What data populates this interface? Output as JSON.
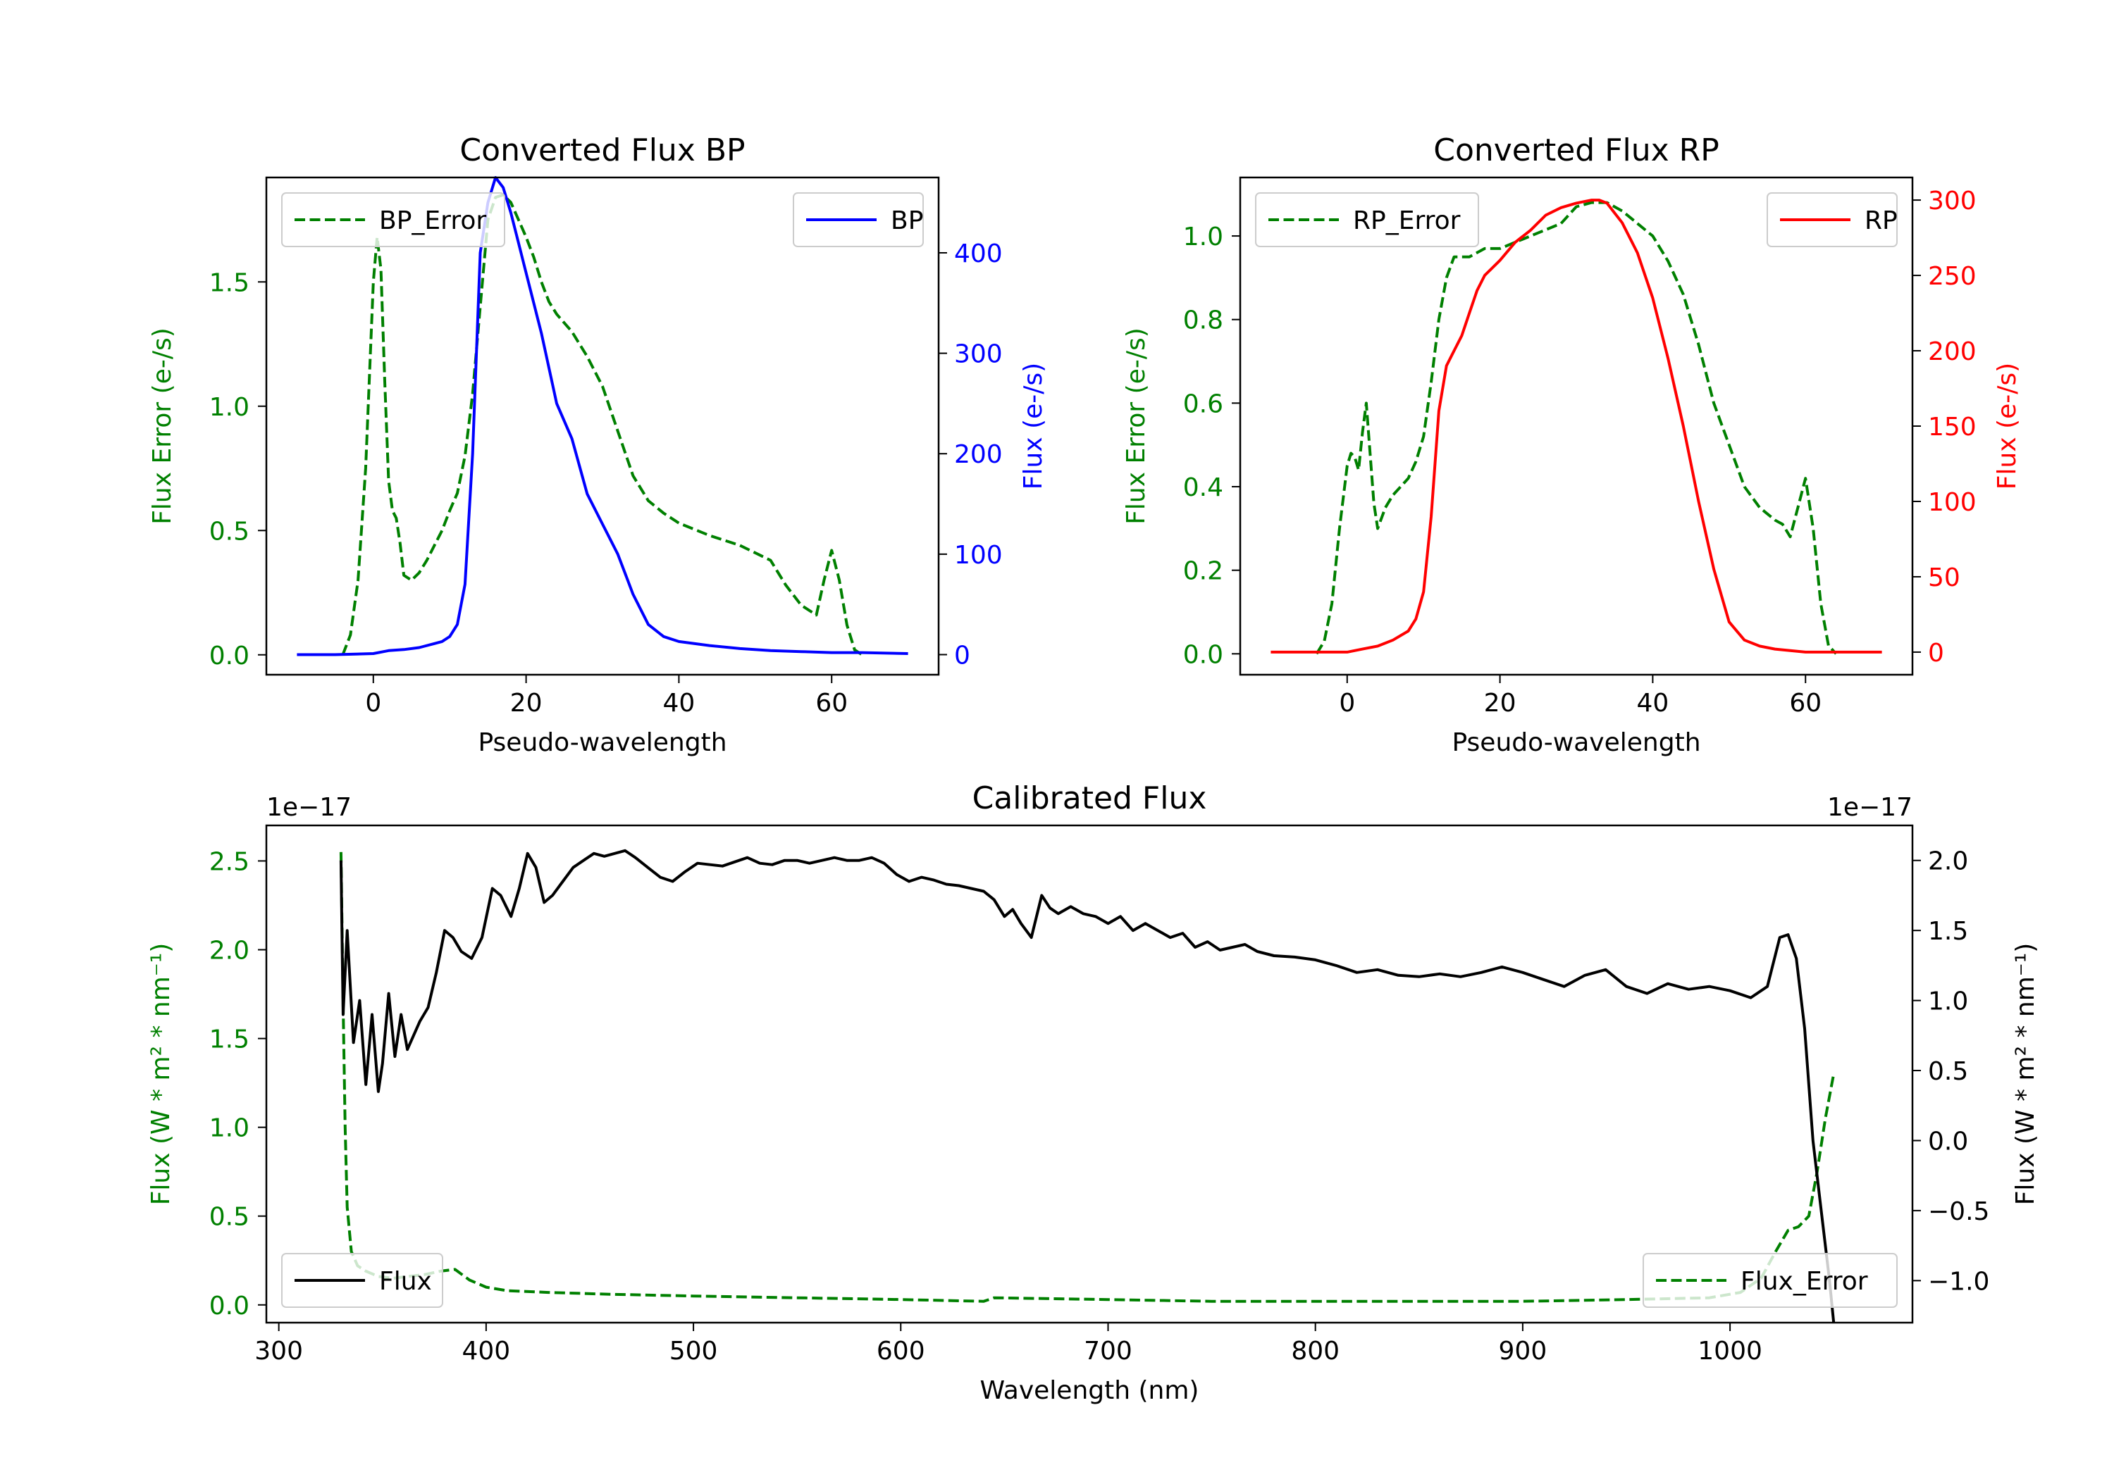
{
  "colors": {
    "bp": "#0000ff",
    "rp": "#ff0000",
    "error": "#008000",
    "flux": "#000000",
    "axis": "#000000"
  },
  "chart_data": [
    {
      "id": "bp",
      "type": "line",
      "title": "Converted Flux BP",
      "xlabel": "Pseudo-wavelength",
      "ylabel_left": "Flux Error (e-/s)",
      "ylabel_right": "Flux (e-/s)",
      "xlim": [
        -14,
        74
      ],
      "ylim_left": [
        -0.08,
        1.92
      ],
      "ylim_right": [
        -20,
        475
      ],
      "xticks": [
        0,
        20,
        40,
        60
      ],
      "yticks_left": [
        0.0,
        0.5,
        1.0,
        1.5
      ],
      "yticks_right": [
        0,
        100,
        200,
        300,
        400
      ],
      "legend_left": "BP_Error",
      "legend_right": "BP",
      "series": [
        {
          "name": "BP_Error",
          "axis": "left",
          "style": "dashed",
          "color": "#008000",
          "x": [
            -4,
            -3,
            -2,
            -1,
            0,
            0.5,
            1,
            1.5,
            2,
            2.5,
            3,
            3.5,
            4,
            5,
            6,
            7,
            8,
            9,
            10,
            11,
            12,
            13,
            14,
            15,
            16,
            17,
            18,
            19,
            20,
            21,
            22,
            23,
            24,
            26,
            28,
            30,
            32,
            34,
            36,
            38,
            40,
            44,
            48,
            52,
            54,
            56,
            58,
            59,
            60,
            61,
            62,
            63,
            64
          ],
          "values": [
            0.0,
            0.08,
            0.3,
            0.75,
            1.5,
            1.68,
            1.55,
            1.1,
            0.7,
            0.58,
            0.55,
            0.45,
            0.32,
            0.3,
            0.33,
            0.38,
            0.44,
            0.5,
            0.58,
            0.65,
            0.8,
            1.05,
            1.4,
            1.75,
            1.84,
            1.85,
            1.82,
            1.75,
            1.68,
            1.6,
            1.5,
            1.42,
            1.37,
            1.3,
            1.2,
            1.08,
            0.9,
            0.72,
            0.62,
            0.57,
            0.53,
            0.48,
            0.44,
            0.38,
            0.28,
            0.2,
            0.16,
            0.3,
            0.42,
            0.3,
            0.12,
            0.02,
            0.0
          ]
        },
        {
          "name": "BP",
          "axis": "right",
          "style": "solid",
          "color": "#0000ff",
          "x": [
            -10,
            -5,
            0,
            2,
            4,
            6,
            8,
            9,
            10,
            11,
            12,
            13,
            14,
            15,
            16,
            17,
            18,
            19,
            20,
            22,
            24,
            26,
            28,
            30,
            32,
            34,
            36,
            38,
            40,
            44,
            48,
            52,
            56,
            60,
            64,
            70
          ],
          "values": [
            0,
            0,
            1,
            4,
            5,
            7,
            11,
            13,
            18,
            30,
            70,
            200,
            400,
            450,
            475,
            465,
            440,
            410,
            380,
            320,
            250,
            215,
            160,
            130,
            100,
            60,
            30,
            18,
            13,
            9,
            6,
            4,
            3,
            2,
            2,
            1
          ]
        }
      ]
    },
    {
      "id": "rp",
      "type": "line",
      "title": "Converted Flux RP",
      "xlabel": "Pseudo-wavelength",
      "ylabel_left": "Flux Error (e-/s)",
      "ylabel_right": "Flux (e-/s)",
      "xlim": [
        -14,
        74
      ],
      "ylim_left": [
        -0.05,
        1.14
      ],
      "ylim_right": [
        -15,
        315
      ],
      "xticks": [
        0,
        20,
        40,
        60
      ],
      "yticks_left": [
        0.0,
        0.2,
        0.4,
        0.6,
        0.8,
        1.0
      ],
      "yticks_right": [
        0,
        50,
        100,
        150,
        200,
        250,
        300
      ],
      "legend_left": "RP_Error",
      "legend_right": "RP",
      "series": [
        {
          "name": "RP_Error",
          "axis": "left",
          "style": "dashed",
          "color": "#008000",
          "x": [
            -4,
            -3,
            -2,
            -1,
            0,
            0.5,
            1,
            1.5,
            2,
            2.5,
            3,
            3.5,
            4,
            5,
            6,
            7,
            8,
            9,
            10,
            11,
            12,
            13,
            14,
            15,
            16,
            18,
            20,
            24,
            28,
            30,
            32,
            34,
            36,
            38,
            40,
            42,
            44,
            46,
            48,
            50,
            52,
            54,
            56,
            57,
            58,
            59,
            60,
            61,
            62,
            63,
            64
          ],
          "values": [
            0.0,
            0.03,
            0.12,
            0.3,
            0.45,
            0.48,
            0.47,
            0.44,
            0.53,
            0.6,
            0.48,
            0.36,
            0.3,
            0.35,
            0.38,
            0.4,
            0.42,
            0.46,
            0.52,
            0.65,
            0.8,
            0.9,
            0.95,
            0.95,
            0.95,
            0.97,
            0.97,
            1.0,
            1.03,
            1.07,
            1.08,
            1.08,
            1.06,
            1.03,
            1.0,
            0.94,
            0.86,
            0.74,
            0.6,
            0.5,
            0.4,
            0.35,
            0.32,
            0.31,
            0.28,
            0.35,
            0.42,
            0.3,
            0.12,
            0.02,
            0.0
          ]
        },
        {
          "name": "RP",
          "axis": "right",
          "style": "solid",
          "color": "#ff0000",
          "x": [
            -10,
            -5,
            0,
            2,
            4,
            6,
            8,
            9,
            10,
            11,
            12,
            13,
            14,
            15,
            16,
            17,
            18,
            20,
            22,
            24,
            26,
            28,
            30,
            32,
            33,
            34,
            36,
            38,
            40,
            42,
            44,
            46,
            48,
            50,
            52,
            54,
            56,
            58,
            60,
            64,
            70
          ],
          "values": [
            0,
            0,
            0,
            2,
            4,
            8,
            14,
            22,
            40,
            90,
            160,
            190,
            200,
            210,
            225,
            240,
            250,
            260,
            272,
            280,
            290,
            295,
            298,
            300,
            300,
            298,
            285,
            265,
            235,
            195,
            150,
            100,
            55,
            20,
            8,
            4,
            2,
            1,
            0,
            0,
            0
          ]
        }
      ]
    },
    {
      "id": "cal",
      "type": "line",
      "title": "Calibrated Flux",
      "xlabel": "Wavelength (nm)",
      "ylabel_left": "Flux (W * m² * nm⁻¹)",
      "ylabel_right": "Flux (W * m² * nm⁻¹)",
      "offset_left": "1e−17",
      "offset_right": "1e−17",
      "xlim": [
        294,
        1088
      ],
      "ylim_left": [
        -0.1,
        2.7
      ],
      "ylim_right": [
        -1.3,
        2.25
      ],
      "xticks": [
        300,
        400,
        500,
        600,
        700,
        800,
        900,
        1000
      ],
      "yticks_left": [
        0.0,
        0.5,
        1.0,
        1.5,
        2.0,
        2.5
      ],
      "yticks_right": [
        -1.0,
        -0.5,
        0.0,
        0.5,
        1.0,
        1.5,
        2.0
      ],
      "legend_left": "Flux",
      "legend_right": "Flux_Error",
      "series": [
        {
          "name": "Flux_Error",
          "axis": "left",
          "style": "dashed",
          "color": "#008000",
          "x": [
            330,
            331,
            332,
            333,
            335,
            338,
            342,
            348,
            355,
            362,
            370,
            378,
            385,
            392,
            400,
            410,
            430,
            460,
            500,
            550,
            600,
            640,
            645,
            700,
            750,
            800,
            850,
            900,
            950,
            990,
            1005,
            1015,
            1022,
            1028,
            1033,
            1038,
            1042,
            1046,
            1050
          ],
          "values": [
            2.55,
            1.7,
            1.0,
            0.55,
            0.3,
            0.22,
            0.19,
            0.16,
            0.15,
            0.16,
            0.17,
            0.19,
            0.2,
            0.14,
            0.1,
            0.08,
            0.07,
            0.06,
            0.05,
            0.04,
            0.03,
            0.02,
            0.04,
            0.03,
            0.02,
            0.02,
            0.02,
            0.02,
            0.03,
            0.04,
            0.07,
            0.15,
            0.3,
            0.42,
            0.44,
            0.5,
            0.75,
            1.05,
            1.3
          ]
        },
        {
          "name": "Flux",
          "axis": "right",
          "style": "solid",
          "color": "#000000",
          "x": [
            330,
            331,
            333,
            336,
            339,
            342,
            345,
            348,
            350,
            353,
            356,
            359,
            362,
            365,
            368,
            372,
            376,
            380,
            384,
            388,
            393,
            398,
            403,
            407,
            412,
            416,
            420,
            424,
            428,
            432,
            437,
            442,
            447,
            452,
            457,
            462,
            467,
            472,
            478,
            484,
            490,
            496,
            502,
            508,
            514,
            520,
            526,
            532,
            538,
            544,
            550,
            556,
            562,
            568,
            574,
            580,
            586,
            592,
            598,
            604,
            610,
            616,
            622,
            628,
            634,
            640,
            645,
            650,
            654,
            658,
            663,
            668,
            672,
            676,
            682,
            688,
            694,
            700,
            706,
            712,
            718,
            724,
            730,
            736,
            742,
            748,
            754,
            760,
            766,
            772,
            780,
            790,
            800,
            810,
            820,
            830,
            840,
            850,
            860,
            870,
            880,
            890,
            900,
            910,
            920,
            930,
            940,
            950,
            960,
            970,
            980,
            990,
            1000,
            1010,
            1018,
            1024,
            1028,
            1032,
            1036,
            1040,
            1044,
            1048,
            1050
          ],
          "values": [
            2.0,
            0.9,
            1.5,
            0.7,
            1.0,
            0.4,
            0.9,
            0.35,
            0.55,
            1.05,
            0.6,
            0.9,
            0.65,
            0.75,
            0.85,
            0.95,
            1.2,
            1.5,
            1.45,
            1.35,
            1.3,
            1.45,
            1.8,
            1.75,
            1.6,
            1.8,
            2.05,
            1.95,
            1.7,
            1.75,
            1.85,
            1.95,
            2.0,
            2.05,
            2.03,
            2.05,
            2.07,
            2.02,
            1.95,
            1.88,
            1.85,
            1.92,
            1.98,
            1.97,
            1.96,
            1.99,
            2.02,
            1.98,
            1.97,
            2.0,
            2.0,
            1.98,
            2.0,
            2.02,
            2.0,
            2.0,
            2.02,
            1.98,
            1.9,
            1.85,
            1.88,
            1.86,
            1.83,
            1.82,
            1.8,
            1.78,
            1.72,
            1.6,
            1.65,
            1.55,
            1.45,
            1.75,
            1.66,
            1.62,
            1.67,
            1.62,
            1.6,
            1.55,
            1.6,
            1.5,
            1.55,
            1.5,
            1.45,
            1.48,
            1.38,
            1.42,
            1.36,
            1.38,
            1.4,
            1.35,
            1.32,
            1.31,
            1.29,
            1.25,
            1.2,
            1.22,
            1.18,
            1.17,
            1.19,
            1.17,
            1.2,
            1.24,
            1.2,
            1.15,
            1.1,
            1.18,
            1.22,
            1.1,
            1.05,
            1.12,
            1.08,
            1.1,
            1.07,
            1.02,
            1.1,
            1.45,
            1.47,
            1.3,
            0.8,
            0.0,
            -0.5,
            -1.0,
            -1.3
          ]
        }
      ]
    }
  ]
}
